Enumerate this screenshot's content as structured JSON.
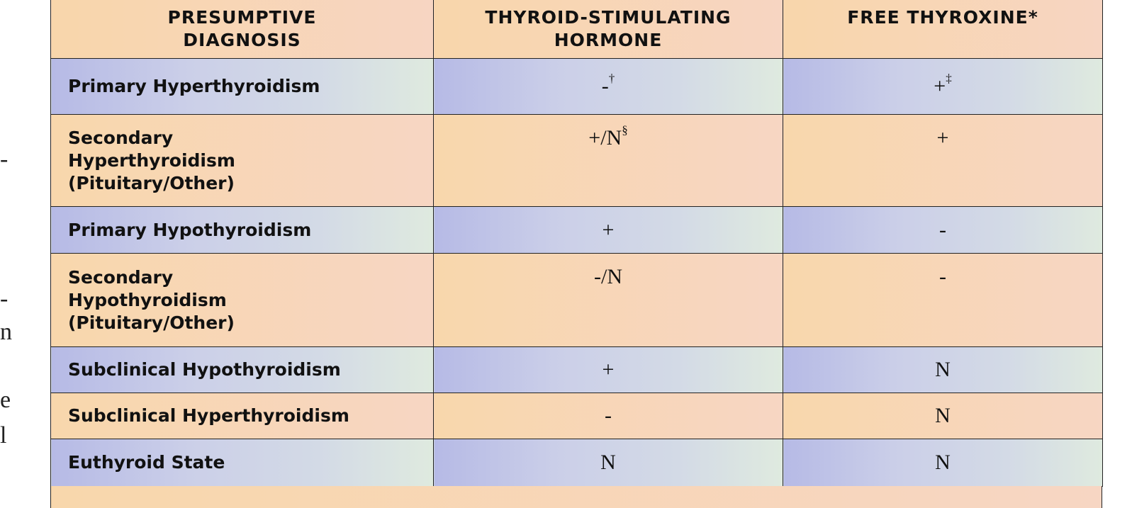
{
  "margin_fragments": [
    "-",
    "-",
    "n",
    "e",
    "l"
  ],
  "table": {
    "headers": [
      "PRESUMPTIVE DIAGNOSIS",
      "THYROID-STIMULATING HORMONE",
      "FREE THYROXINE*"
    ],
    "rows": [
      {
        "diagnosis": "Primary Hyperthyroidism",
        "tsh": "-",
        "tsh_note": "†",
        "ft4": "+",
        "ft4_note": "‡"
      },
      {
        "diagnosis": "Secondary Hyperthyroidism (Pituitary/Other)",
        "tsh": "+/N",
        "tsh_note": "§",
        "ft4": "+",
        "ft4_note": ""
      },
      {
        "diagnosis": "Primary Hypothyroidism",
        "tsh": "+",
        "tsh_note": "",
        "ft4": "-",
        "ft4_note": ""
      },
      {
        "diagnosis": "Secondary Hypothyroidism (Pituitary/Other)",
        "tsh": "-/N",
        "tsh_note": "",
        "ft4": "-",
        "ft4_note": ""
      },
      {
        "diagnosis": "Subclinical Hypothyroidism",
        "tsh": "+",
        "tsh_note": "",
        "ft4": "N",
        "ft4_note": ""
      },
      {
        "diagnosis": "Subclinical Hyperthyroidism",
        "tsh": "-",
        "tsh_note": "",
        "ft4": "N",
        "ft4_note": ""
      },
      {
        "diagnosis": "Euthyroid State",
        "tsh": "N",
        "tsh_note": "",
        "ft4": "N",
        "ft4_note": ""
      }
    ]
  },
  "colors": {
    "header": "#f8d6ab",
    "blue_row": "#b6bae6",
    "orange_row": "#f8d7ac",
    "border": "#222222"
  }
}
